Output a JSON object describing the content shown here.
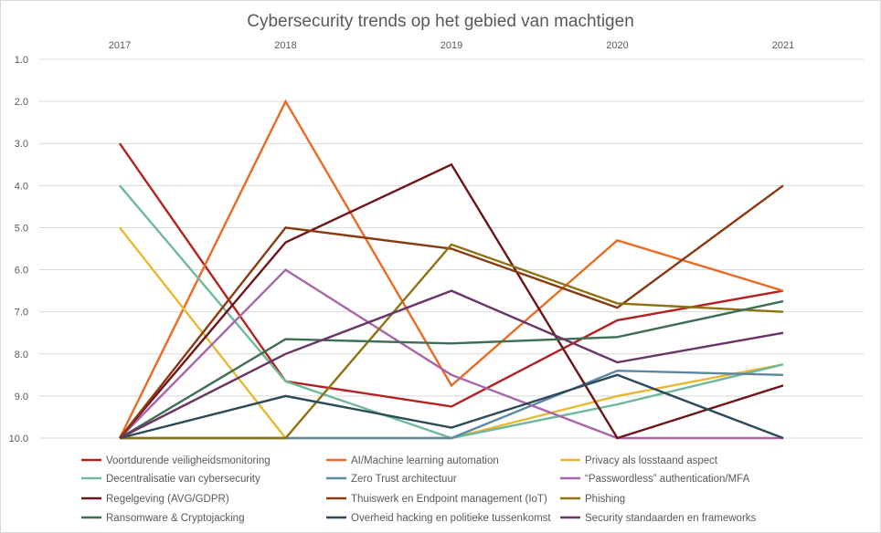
{
  "chart_data": {
    "type": "line",
    "title": "Cybersecurity trends op het gebied van machtigen",
    "x": [
      "2017",
      "2018",
      "2019",
      "2020",
      "2021"
    ],
    "y_ticks": [
      "1.0",
      "2.0",
      "3.0",
      "4.0",
      "5.0",
      "6.0",
      "7.0",
      "8.0",
      "9.0",
      "10.0"
    ],
    "ylim": [
      1,
      10
    ],
    "y_inverted": true,
    "x_axis_position": "top",
    "grid": true,
    "legend_position": "bottom",
    "series": [
      {
        "name": "Voortdurende veiligheidsmonitoring",
        "color": "#b52020",
        "values": [
          3.0,
          8.65,
          9.25,
          7.2,
          6.5
        ]
      },
      {
        "name": "AI/Machine learning automation",
        "color": "#ea6a24",
        "values": [
          10.0,
          2.0,
          8.75,
          5.3,
          6.5
        ]
      },
      {
        "name": "Privacy als losstaand aspect",
        "color": "#e8b830",
        "values": [
          5.0,
          10.0,
          10.0,
          9.0,
          8.25
        ]
      },
      {
        "name": "Decentralisatie van cybersecurity",
        "color": "#6fb89a",
        "values": [
          4.0,
          8.65,
          10.0,
          9.2,
          8.25
        ]
      },
      {
        "name": "Zero Trust architectuur",
        "color": "#5b87a3",
        "values": [
          10.0,
          10.0,
          10.0,
          8.4,
          8.5
        ]
      },
      {
        "name": "“Passwordless” authentication/MFA",
        "color": "#a865a8",
        "values": [
          10.0,
          6.0,
          8.5,
          10.0,
          10.0
        ]
      },
      {
        "name": "Regelgeving (AVG/GDPR)",
        "color": "#6e1418",
        "values": [
          10.0,
          5.35,
          3.5,
          10.0,
          8.75
        ]
      },
      {
        "name": "Thuiswerk en Endpoint management (IoT)",
        "color": "#8b3a10",
        "values": [
          10.0,
          5.0,
          5.5,
          6.9,
          4.0
        ]
      },
      {
        "name": "Phishing",
        "color": "#8e7212",
        "values": [
          10.0,
          10.0,
          5.4,
          6.8,
          7.0
        ]
      },
      {
        "name": "Ransomware & Cryptojacking",
        "color": "#3e6e54",
        "values": [
          10.0,
          7.65,
          7.75,
          7.6,
          6.75
        ]
      },
      {
        "name": "Overheid hacking en politieke tussenkomst",
        "color": "#2a4a58",
        "values": [
          10.0,
          9.0,
          9.75,
          8.5,
          10.0
        ]
      },
      {
        "name": "Security standaarden en frameworks",
        "color": "#6a3466",
        "values": [
          10.0,
          8.0,
          6.5,
          8.2,
          7.5
        ]
      }
    ]
  }
}
